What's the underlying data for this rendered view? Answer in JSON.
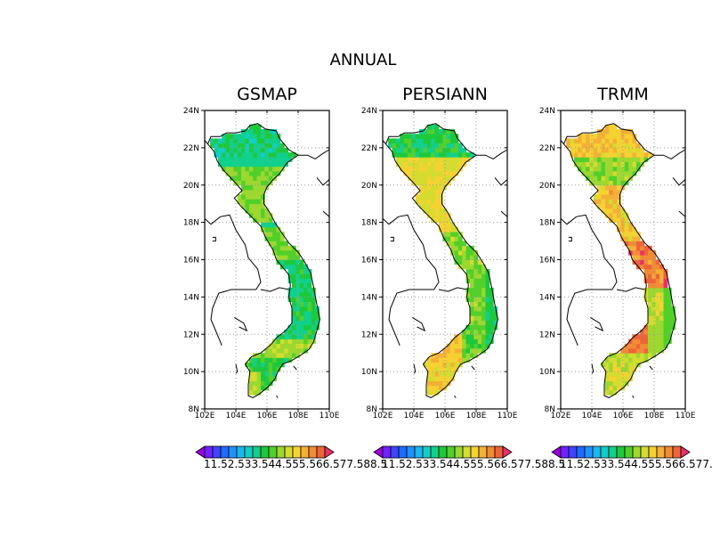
{
  "suptitle": "ANNUAL",
  "panels": [
    {
      "title": "GSMAP",
      "product": "gsmap"
    },
    {
      "title": "PERSIANN",
      "product": "persiann"
    },
    {
      "title": "TRMM",
      "product": "trmm"
    }
  ],
  "axes": {
    "lat_ticks": [
      "24N",
      "22N",
      "20N",
      "18N",
      "16N",
      "14N",
      "12N",
      "10N",
      "8N"
    ],
    "lon_ticks": [
      "102E",
      "104E",
      "106E",
      "108E",
      "110E"
    ],
    "lat_range": [
      8,
      24
    ],
    "lon_range": [
      102,
      110
    ],
    "grid": "dotted"
  },
  "colorbar": {
    "label_text": "11.52.533.544.555.566.577.588.5",
    "levels": [
      1,
      1.5,
      2,
      2.5,
      3,
      3.5,
      4,
      4.5,
      5,
      5.5,
      6,
      6.5,
      7,
      7.5,
      8,
      8.5
    ],
    "colors": [
      "#9c00e0",
      "#6f22ff",
      "#3f44ff",
      "#1d6cff",
      "#1e93ff",
      "#18b8f0",
      "#10cfc8",
      "#10d08c",
      "#1ec83c",
      "#52d02a",
      "#9cd830",
      "#d4dc30",
      "#f5d232",
      "#f4b037",
      "#f18c35",
      "#ee643a",
      "#e8306a"
    ]
  },
  "colors": {
    "ocean": "#ffffff",
    "outline": "#000000",
    "grid": "#999999"
  }
}
